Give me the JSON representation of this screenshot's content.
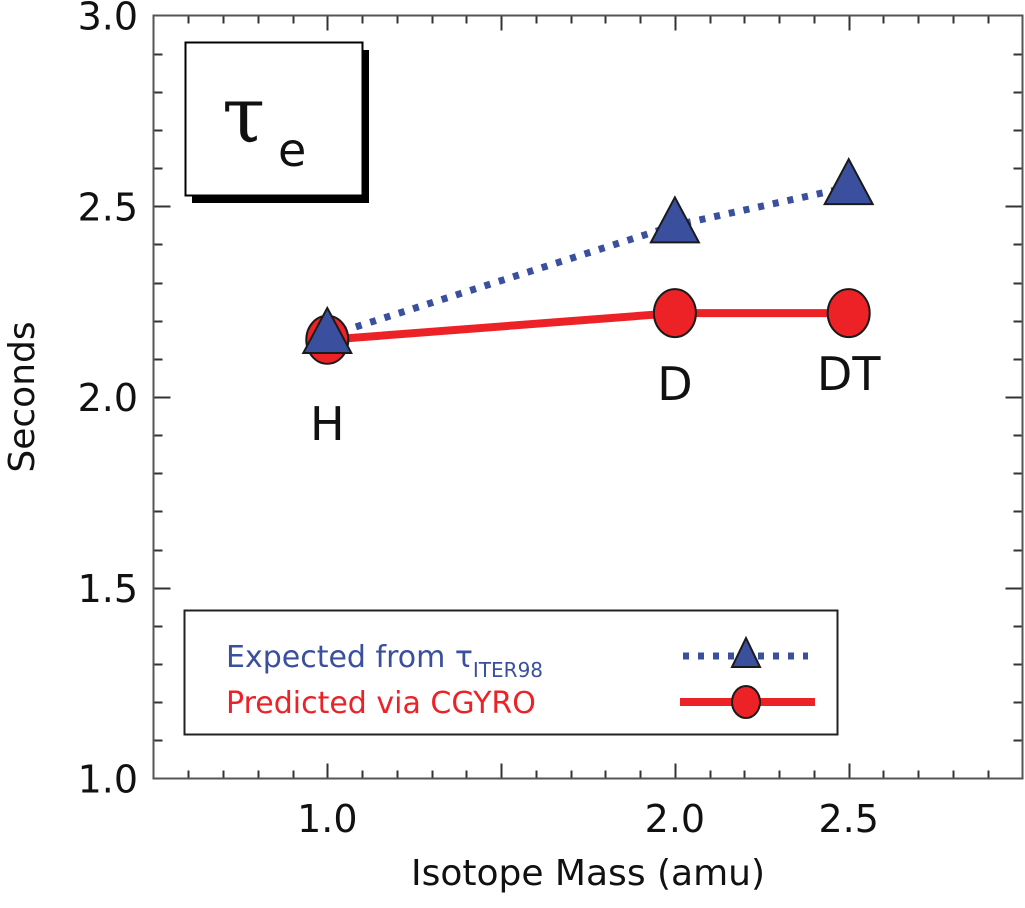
{
  "chart_data": {
    "type": "line",
    "title": "τ",
    "title_subscript": "e",
    "xlabel": "Isotope Mass (amu)",
    "ylabel": "Seconds",
    "xlim": [
      0.5,
      3.0
    ],
    "ylim": [
      1.0,
      3.0
    ],
    "x_major_ticks": [
      1.0,
      2.0,
      2.5
    ],
    "x_tick_labels": [
      "1.0",
      "2.0",
      "2.5"
    ],
    "x_minor_step": 0.1,
    "y_major_ticks": [
      1.0,
      1.5,
      2.0,
      2.5,
      3.0
    ],
    "y_tick_labels": [
      "1.0",
      "1.5",
      "2.0",
      "2.5",
      "3.0"
    ],
    "y_minor_step": 0.1,
    "grid": false,
    "x": [
      1.0,
      2.0,
      2.5
    ],
    "point_labels": [
      "H",
      "D",
      "DT"
    ],
    "series": [
      {
        "name": "Expected from τITER98",
        "legend_main": "Expected from τ",
        "legend_sub": "ITER98",
        "values": [
          2.16,
          2.45,
          2.55
        ],
        "color": "#3a4f9e",
        "line_style": "dotted",
        "marker": "triangle"
      },
      {
        "name": "Predicted via CGYRO",
        "legend_main": "Predicted via CGYRO",
        "legend_sub": "",
        "values": [
          2.15,
          2.22,
          2.22
        ],
        "color": "#ec2227",
        "line_style": "solid",
        "marker": "circle"
      }
    ],
    "legend_position": "bottom-center"
  }
}
